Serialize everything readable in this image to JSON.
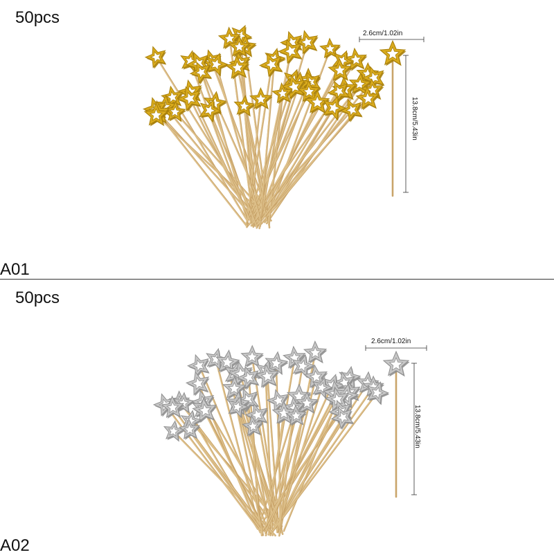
{
  "products": [
    {
      "code": "A01",
      "quantity": "50pcs",
      "color": "gold",
      "star_fill": "#d9ab1e",
      "star_edge": "#a9800b",
      "width_label": "2.6cm/1.02in",
      "height_label": "13.8cm/5.43in"
    },
    {
      "code": "A02",
      "quantity": "50pcs",
      "color": "silver",
      "star_fill": "#c7c7c7",
      "star_edge": "#8f8f8f",
      "width_label": "2.6cm/1.02in",
      "height_label": "13.8cm/5.43in"
    }
  ],
  "stick_color": "#e0c48f"
}
